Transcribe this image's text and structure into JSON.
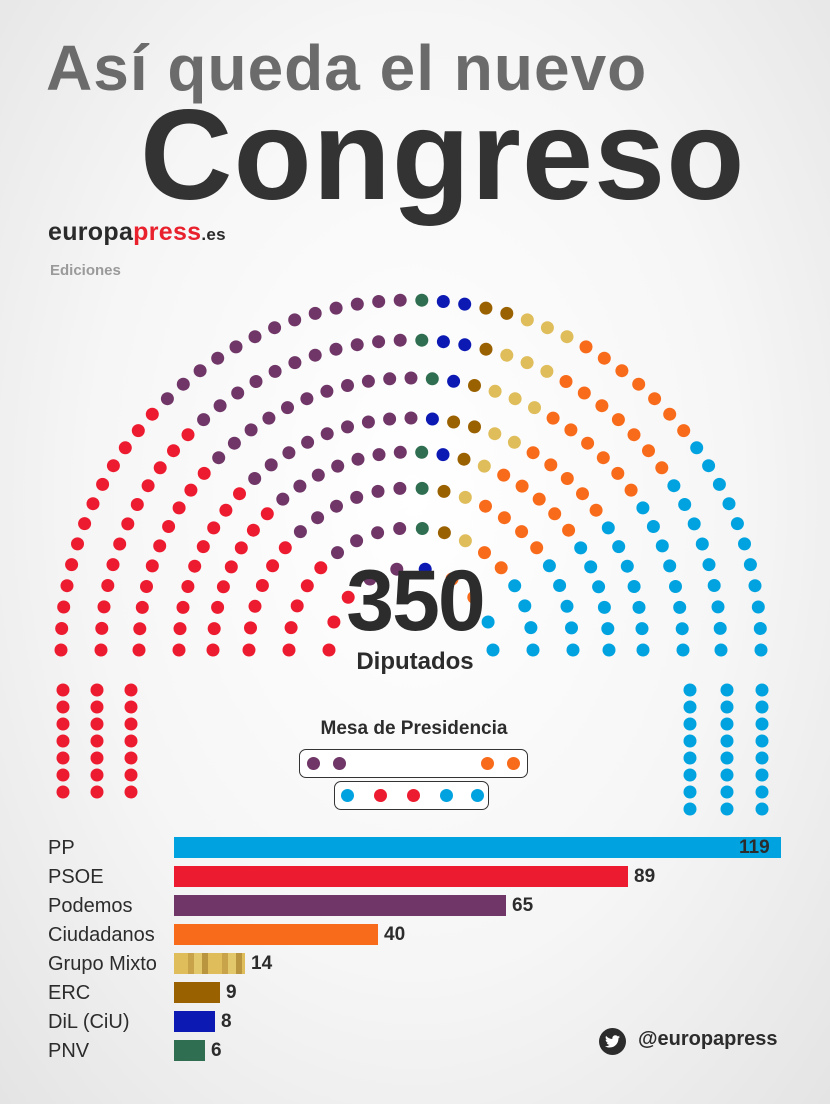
{
  "header": {
    "title_line1": "Así queda el nuevo",
    "title_line2": "Congreso"
  },
  "brand": {
    "part1": "europa",
    "part2": "press",
    "part3": ".es",
    "subtitle": "Ediciones"
  },
  "center": {
    "total": "350",
    "label": "Diputados"
  },
  "mesa": {
    "title": "Mesa de Presidencia",
    "row1": [
      "Podemos",
      "Podemos",
      "Ciudadanos",
      "Ciudadanos"
    ],
    "row2": [
      "PP",
      "PSOE",
      "PSOE",
      "PP",
      "PP"
    ]
  },
  "colors": {
    "PP": "#00a3e0",
    "PSOE": "#ed1b2f",
    "Podemos": "#6f3667",
    "Ciudadanos": "#f86b1b",
    "Grupo Mixto": "#dfbd5a",
    "ERC": "#9a6100",
    "DiL (CiU)": "#0c19b3",
    "PNV": "#2f6e51",
    "Empty": "#dcdcdc"
  },
  "chart_data": {
    "type": "bar",
    "orientation": "horizontal",
    "categories": [
      "PP",
      "PSOE",
      "Podemos",
      "Ciudadanos",
      "Grupo Mixto",
      "ERC",
      "DiL (CiU)",
      "PNV"
    ],
    "values": [
      119,
      89,
      65,
      40,
      14,
      9,
      8,
      6
    ],
    "data_labels": [
      "119",
      "89",
      "65",
      "40",
      "14",
      "9",
      "8",
      "6"
    ],
    "xlim": [
      0,
      119
    ],
    "title": "",
    "xlabel": "",
    "ylabel": ""
  },
  "footer": {
    "icon": "twitter-icon",
    "handle": "@europapress"
  }
}
